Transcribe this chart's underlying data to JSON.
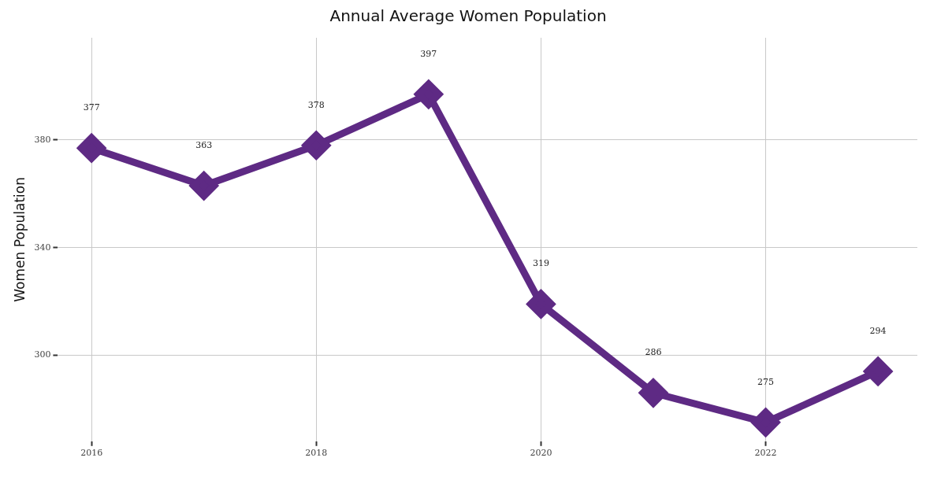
{
  "chart_data": {
    "type": "line",
    "title": "Annual Average Women Population",
    "ylabel": "Women Population",
    "x": [
      2016,
      2017,
      2018,
      2019,
      2020,
      2021,
      2022,
      2023
    ],
    "series": [
      {
        "color": "#5e2a84",
        "values": [
          377,
          363,
          378,
          397,
          319,
          286,
          275,
          294
        ]
      }
    ],
    "xlim": [
      2015.7,
      2023.35
    ],
    "xticks": [
      2016,
      2018,
      2020,
      2022
    ],
    "ylim": [
      268,
      418
    ],
    "yticks": [
      300,
      340,
      380
    ],
    "grid": true,
    "legend": false,
    "marker": "diamond",
    "line_style": "solid",
    "data_labels": true
  }
}
